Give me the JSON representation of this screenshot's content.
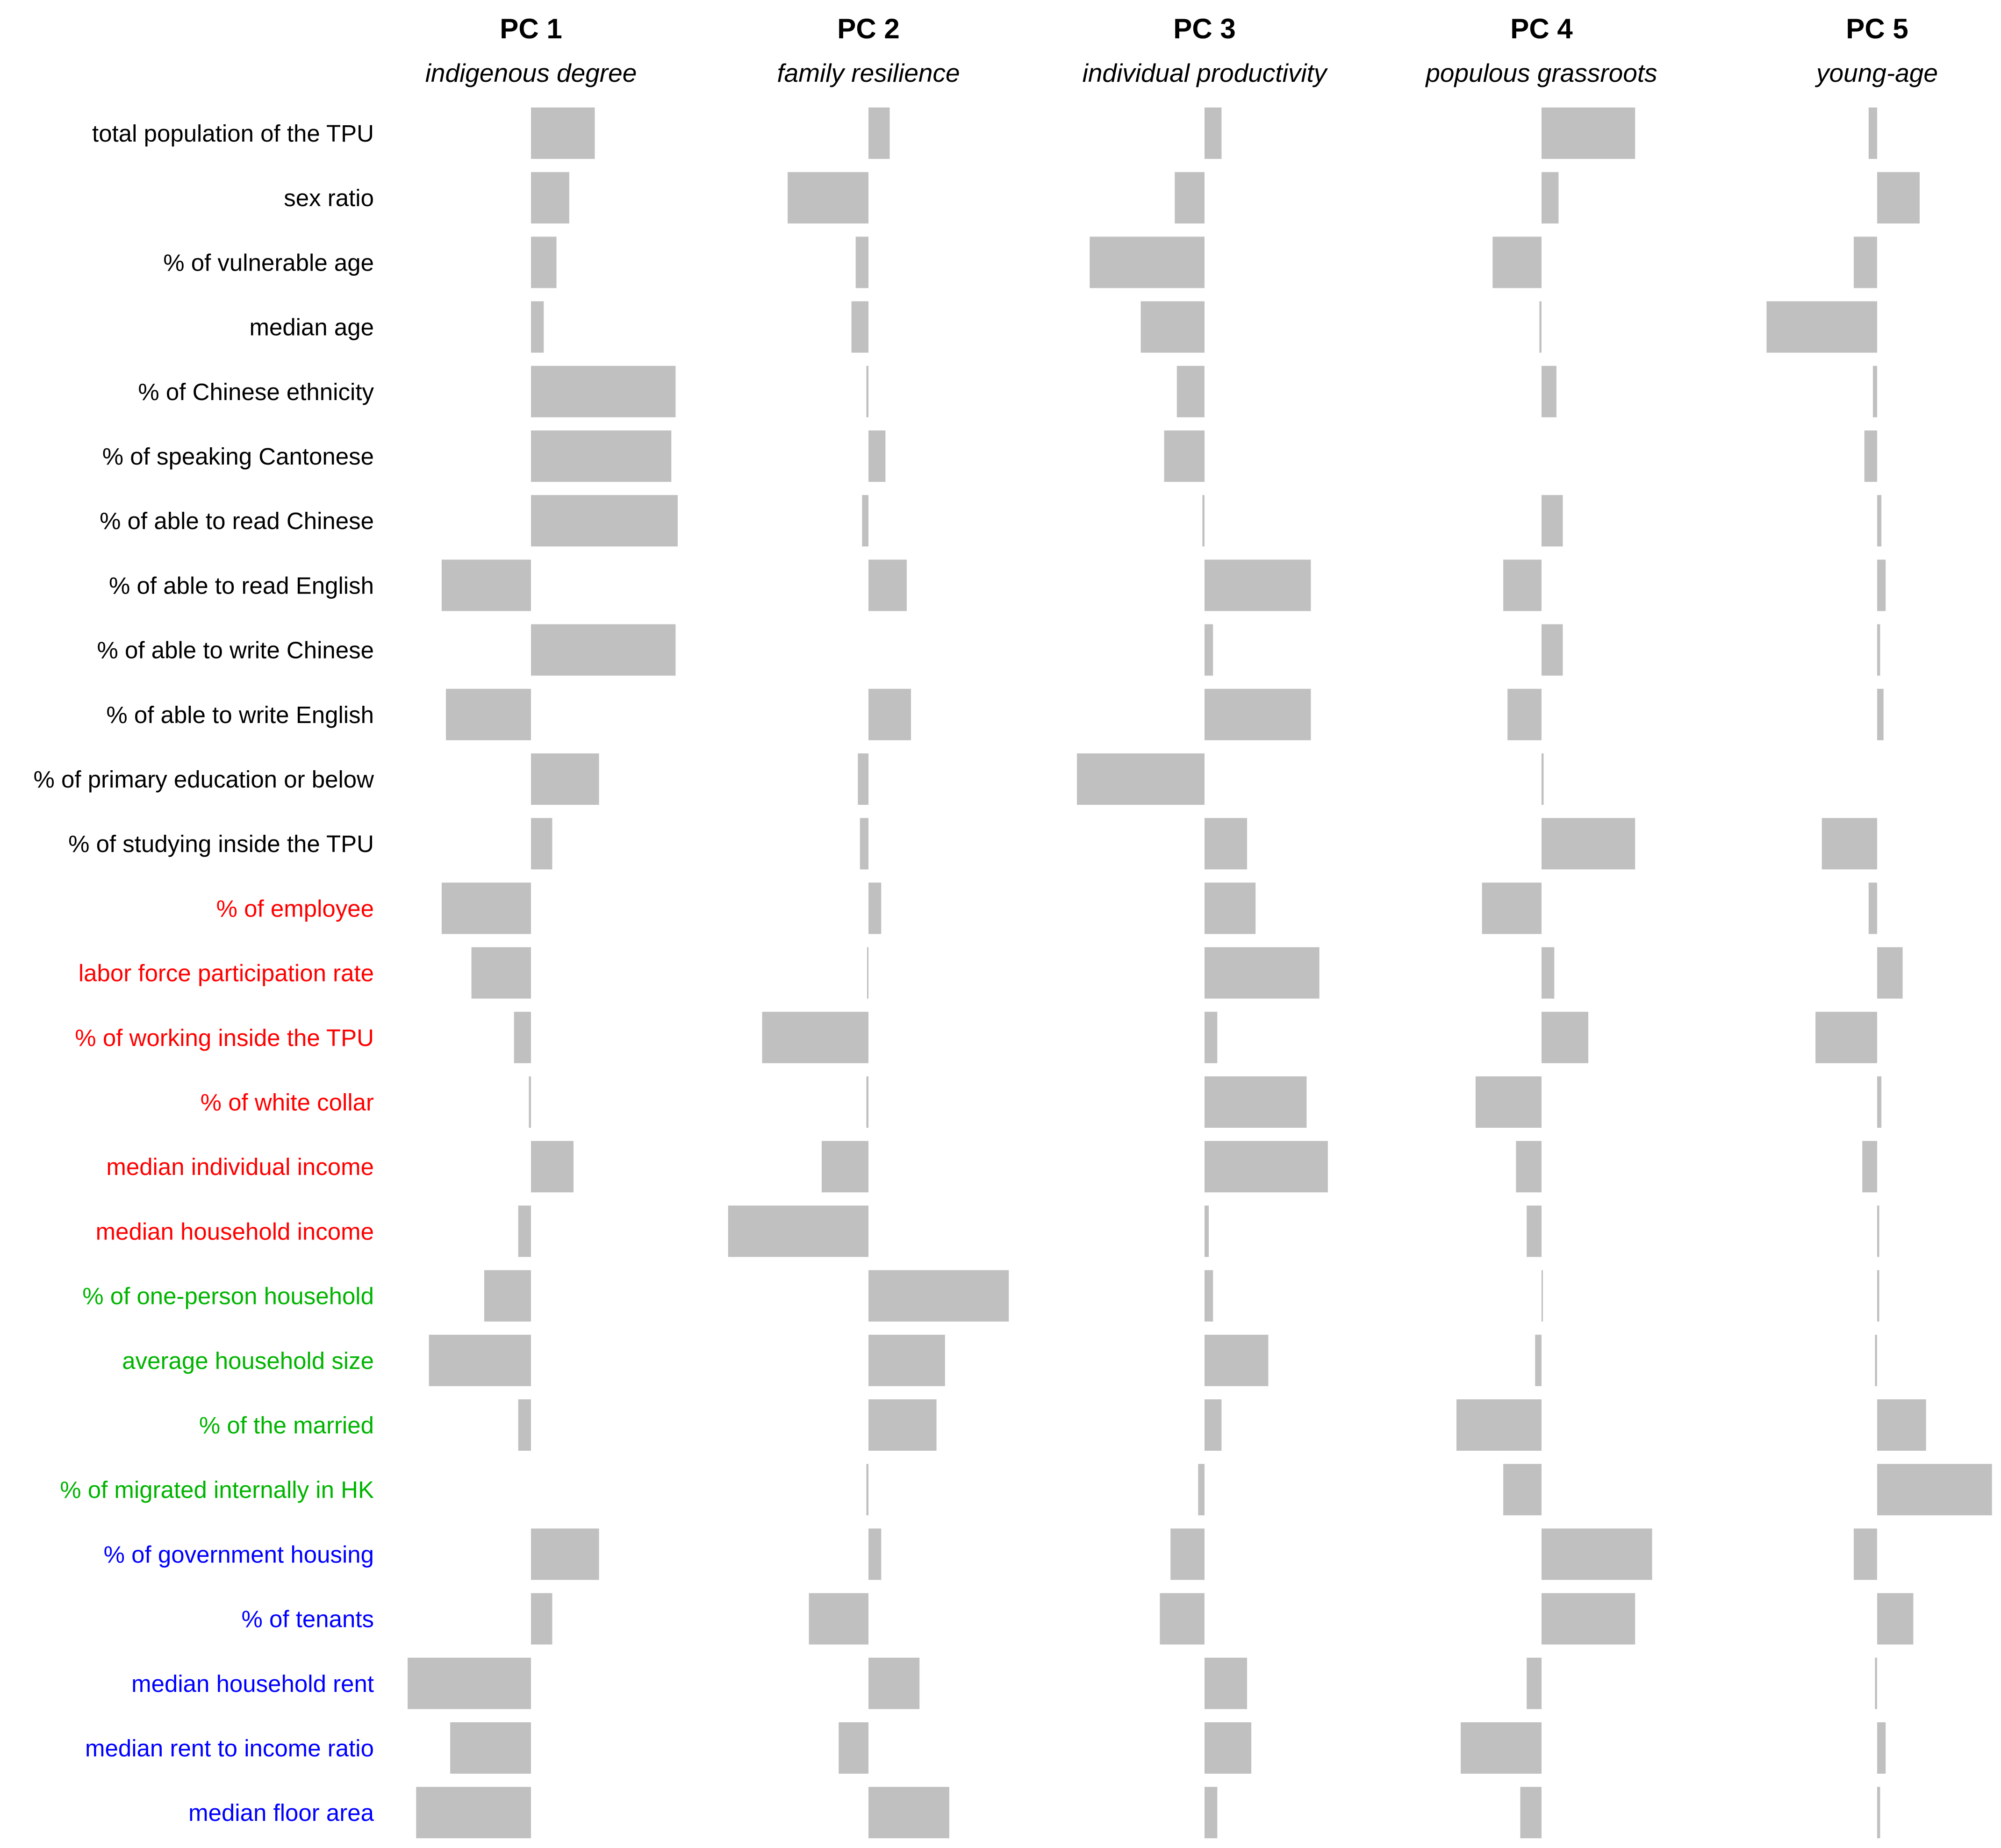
{
  "chart_data": {
    "type": "bar",
    "orientation": "horizontal",
    "bar_color": "#c0c0c0",
    "grid": false,
    "legend": "none",
    "xlim": [
      -1,
      1
    ],
    "categories": [
      {
        "label": "total population of the TPU",
        "color": "#000000"
      },
      {
        "label": "sex ratio",
        "color": "#000000"
      },
      {
        "label": "% of vulnerable age",
        "color": "#000000"
      },
      {
        "label": "median age",
        "color": "#000000"
      },
      {
        "label": "% of Chinese ethnicity",
        "color": "#000000"
      },
      {
        "label": "% of speaking Cantonese",
        "color": "#000000"
      },
      {
        "label": "% of able to read Chinese",
        "color": "#000000"
      },
      {
        "label": "% of able to read English",
        "color": "#000000"
      },
      {
        "label": "% of able to write Chinese",
        "color": "#000000"
      },
      {
        "label": "% of able to write English",
        "color": "#000000"
      },
      {
        "label": "% of primary education or below",
        "color": "#000000"
      },
      {
        "label": "% of studying inside the TPU",
        "color": "#000000"
      },
      {
        "label": "% of employee",
        "color": "#ff0000"
      },
      {
        "label": "labor force participation rate",
        "color": "#ff0000"
      },
      {
        "label": "% of working inside the TPU",
        "color": "#ff0000"
      },
      {
        "label": "% of white collar",
        "color": "#ff0000"
      },
      {
        "label": "median individual income",
        "color": "#ff0000"
      },
      {
        "label": "median household income",
        "color": "#ff0000"
      },
      {
        "label": "% of one-person household",
        "color": "#00b400"
      },
      {
        "label": "average household size",
        "color": "#00b400"
      },
      {
        "label": "% of the married",
        "color": "#00b400"
      },
      {
        "label": "% of migrated internally in HK",
        "color": "#00b400"
      },
      {
        "label": "% of government housing",
        "color": "#0000ff"
      },
      {
        "label": "% of tenants",
        "color": "#0000ff"
      },
      {
        "label": "median household rent",
        "color": "#0000ff"
      },
      {
        "label": "median rent to income ratio",
        "color": "#0000ff"
      },
      {
        "label": "median floor area",
        "color": "#0000ff"
      }
    ],
    "series": [
      {
        "name": "PC 1",
        "subtitle": "indigenous degree",
        "values": [
          0.15,
          0.09,
          0.06,
          0.03,
          0.34,
          0.33,
          0.345,
          -0.21,
          0.34,
          -0.2,
          0.16,
          0.05,
          -0.21,
          -0.14,
          -0.04,
          -0.005,
          0.1,
          -0.03,
          -0.11,
          -0.24,
          -0.03,
          0,
          0.16,
          0.05,
          -0.29,
          -0.19,
          -0.27
        ]
      },
      {
        "name": "PC 2",
        "subtitle": "family resilience",
        "values": [
          0.05,
          -0.19,
          -0.03,
          -0.04,
          -0.005,
          0.04,
          -0.015,
          0.09,
          0,
          0.1,
          -0.025,
          -0.02,
          0.03,
          -0.003,
          -0.25,
          -0.005,
          -0.11,
          -0.33,
          0.33,
          0.18,
          0.16,
          -0.005,
          0.03,
          -0.14,
          0.12,
          -0.07,
          0.19
        ]
      },
      {
        "name": "PC 3",
        "subtitle": "individual productivity",
        "values": [
          0.04,
          -0.07,
          -0.27,
          -0.15,
          -0.065,
          -0.095,
          -0.005,
          0.25,
          0.02,
          0.25,
          -0.3,
          0.1,
          0.12,
          0.27,
          0.03,
          0.24,
          0.29,
          0.01,
          0.02,
          0.15,
          0.04,
          -0.015,
          -0.08,
          -0.105,
          0.1,
          0.11,
          0.03
        ]
      },
      {
        "name": "PC 4",
        "subtitle": "populous grassroots",
        "values": [
          0.22,
          0.04,
          -0.115,
          -0.005,
          0.035,
          0,
          0.05,
          -0.09,
          0.05,
          -0.08,
          0.005,
          0.22,
          -0.14,
          0.03,
          0.11,
          -0.155,
          -0.06,
          -0.035,
          0.003,
          -0.015,
          -0.2,
          -0.09,
          0.26,
          0.22,
          -0.035,
          -0.19,
          -0.05
        ]
      },
      {
        "name": "PC 5",
        "subtitle": "young-age",
        "values": [
          -0.02,
          0.1,
          -0.055,
          -0.26,
          -0.01,
          -0.03,
          0.01,
          0.02,
          0.007,
          0.015,
          0,
          -0.13,
          -0.02,
          0.06,
          -0.145,
          0.01,
          -0.035,
          0.005,
          0.005,
          -0.005,
          0.115,
          0.27,
          -0.055,
          0.085,
          -0.005,
          0.02,
          0.007
        ]
      }
    ]
  }
}
